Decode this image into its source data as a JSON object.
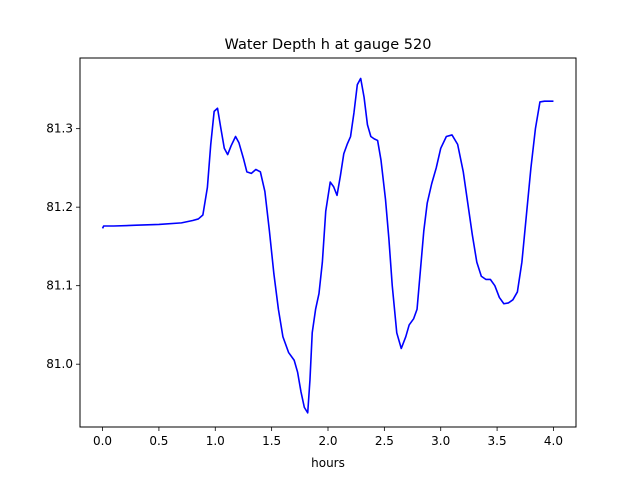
{
  "chart_data": {
    "type": "line",
    "title": "Water Depth h at gauge 520",
    "xlabel": "hours",
    "ylabel": "",
    "xlim": [
      -0.2,
      4.2
    ],
    "ylim": [
      80.92,
      81.39
    ],
    "xticks": [
      0.0,
      0.5,
      1.0,
      1.5,
      2.0,
      2.5,
      3.0,
      3.5,
      4.0
    ],
    "xtick_labels": [
      "0.0",
      "0.5",
      "1.0",
      "1.5",
      "2.0",
      "2.5",
      "3.0",
      "3.5",
      "4.0"
    ],
    "yticks": [
      81.0,
      81.1,
      81.2,
      81.3
    ],
    "ytick_labels": [
      "81.0",
      "81.1",
      "81.2",
      "81.3"
    ],
    "grid": false,
    "legend": "none",
    "series": [
      {
        "color": "#0000ff",
        "x": [
          0.0,
          0.01,
          0.1,
          0.3,
          0.5,
          0.7,
          0.8,
          0.85,
          0.89,
          0.93,
          0.96,
          0.99,
          1.02,
          1.05,
          1.08,
          1.11,
          1.14,
          1.18,
          1.21,
          1.25,
          1.28,
          1.32,
          1.36,
          1.4,
          1.44,
          1.48,
          1.52,
          1.56,
          1.6,
          1.65,
          1.7,
          1.73,
          1.76,
          1.79,
          1.82,
          1.84,
          1.86,
          1.89,
          1.92,
          1.95,
          1.98,
          2.02,
          2.05,
          2.08,
          2.11,
          2.14,
          2.17,
          2.2,
          2.23,
          2.26,
          2.29,
          2.32,
          2.35,
          2.38,
          2.41,
          2.44,
          2.47,
          2.51,
          2.54,
          2.57,
          2.61,
          2.65,
          2.69,
          2.72,
          2.76,
          2.79,
          2.82,
          2.85,
          2.88,
          2.92,
          2.96,
          3.0,
          3.05,
          3.1,
          3.15,
          3.2,
          3.24,
          3.28,
          3.32,
          3.36,
          3.4,
          3.44,
          3.48,
          3.52,
          3.56,
          3.6,
          3.64,
          3.68,
          3.72,
          3.76,
          3.8,
          3.84,
          3.88,
          3.92,
          3.96,
          4.0
        ],
        "y": [
          81.173,
          81.176,
          81.176,
          81.177,
          81.178,
          81.18,
          81.183,
          81.185,
          81.19,
          81.225,
          81.28,
          81.322,
          81.326,
          81.3,
          81.275,
          81.267,
          81.278,
          81.29,
          81.282,
          81.262,
          81.245,
          81.243,
          81.248,
          81.245,
          81.22,
          81.17,
          81.115,
          81.07,
          81.035,
          81.015,
          81.005,
          80.99,
          80.965,
          80.945,
          80.938,
          80.98,
          81.04,
          81.07,
          81.09,
          81.13,
          81.195,
          81.232,
          81.226,
          81.215,
          81.24,
          81.268,
          81.28,
          81.29,
          81.32,
          81.356,
          81.364,
          81.34,
          81.305,
          81.29,
          81.287,
          81.285,
          81.26,
          81.21,
          81.16,
          81.1,
          81.04,
          81.02,
          81.035,
          81.05,
          81.058,
          81.07,
          81.12,
          81.17,
          81.205,
          81.23,
          81.25,
          81.275,
          81.29,
          81.292,
          81.28,
          81.245,
          81.205,
          81.165,
          81.13,
          81.112,
          81.108,
          81.108,
          81.1,
          81.085,
          81.077,
          81.078,
          81.082,
          81.092,
          81.13,
          81.19,
          81.25,
          81.3,
          81.334,
          81.335,
          81.335,
          81.335
        ]
      }
    ]
  }
}
